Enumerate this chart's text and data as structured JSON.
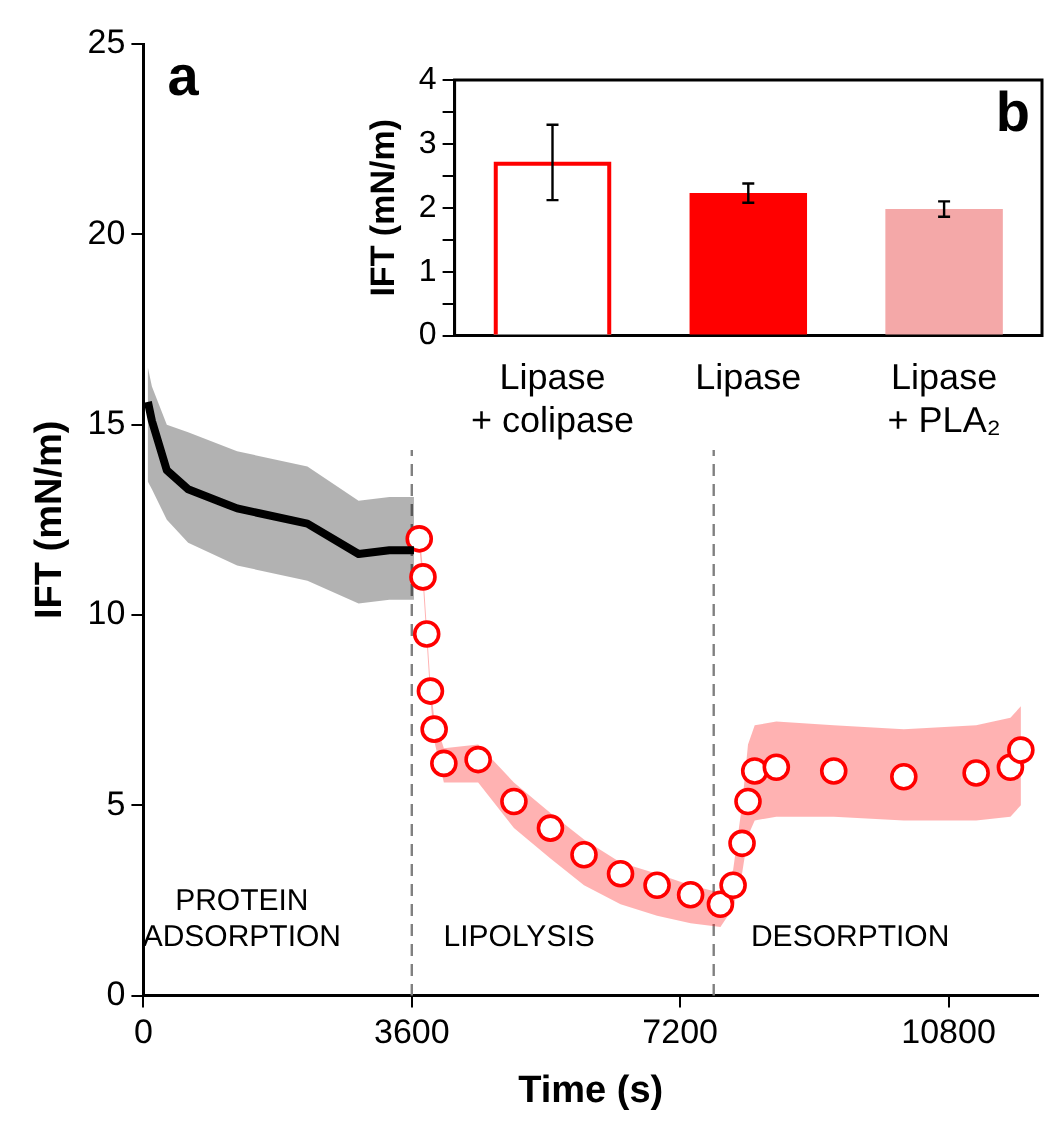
{
  "chart_data": [
    {
      "type": "line",
      "xlabel": "Time (s)",
      "ylabel": "IFT (mN/m)",
      "xlim": [
        0,
        12000
      ],
      "xticks": [
        0,
        3600,
        7200,
        10800
      ],
      "ylim": [
        0,
        25
      ],
      "yticks": [
        0,
        5,
        10,
        15,
        20,
        25
      ],
      "grid": false,
      "legend": false,
      "series": [
        {
          "type": "line",
          "color": "#000000",
          "marker": "none",
          "x": [
            60,
            114,
            314,
            600,
            1257,
            2200,
            2886,
            3300,
            3629
          ],
          "values": [
            15.6,
            15.1,
            13.8,
            13.3,
            12.8,
            12.4,
            11.6,
            11.7,
            11.7
          ],
          "lower": [
            13.5,
            13.3,
            12.5,
            11.9,
            11.3,
            10.9,
            10.3,
            10.4,
            10.4
          ],
          "upper": [
            16.5,
            16.0,
            15.0,
            14.8,
            14.3,
            13.9,
            13.0,
            13.1,
            13.1
          ]
        },
        {
          "type": "scatter",
          "color": "#ff0000",
          "marker": "circle",
          "x": [
            3700,
            3750,
            3800,
            3850,
            3900,
            4030,
            4490,
            4970,
            5460,
            5910,
            6400,
            6890,
            7340,
            7740,
            7910,
            8030,
            8110,
            8200,
            8490,
            9260,
            10200,
            11170,
            11630,
            11770
          ],
          "values": [
            12.0,
            11.0,
            9.5,
            8.0,
            7.0,
            6.1,
            6.2,
            5.1,
            4.4,
            3.7,
            3.2,
            2.9,
            2.65,
            2.4,
            2.9,
            4.0,
            5.1,
            5.9,
            6.0,
            5.9,
            5.75,
            5.85,
            6.0,
            6.45
          ],
          "lower": [
            11.8,
            10.8,
            9.3,
            7.8,
            6.7,
            5.6,
            5.6,
            4.4,
            3.6,
            2.9,
            2.4,
            2.1,
            1.9,
            1.8,
            2.3,
            3.2,
            4.2,
            4.6,
            4.7,
            4.7,
            4.6,
            4.6,
            4.7,
            5.0
          ],
          "upper": [
            12.2,
            11.2,
            9.7,
            8.2,
            7.3,
            6.5,
            6.6,
            5.6,
            4.8,
            4.1,
            3.5,
            3.2,
            2.9,
            2.7,
            3.3,
            5.0,
            6.6,
            7.1,
            7.2,
            7.1,
            7.0,
            7.1,
            7.3,
            7.6
          ]
        }
      ],
      "ref_lines": [
        {
          "axis": "x",
          "value": 3600,
          "color": "#808080",
          "line_style": "dashed"
        },
        {
          "axis": "x",
          "value": 7650,
          "color": "#808080",
          "line_style": "dashed"
        }
      ],
      "annotations": [
        "a",
        "PROTEIN ADSORPTION",
        "LIPOLYSIS",
        "DESORPTION"
      ]
    },
    {
      "type": "bar",
      "ylabel": "IFT (mN/m)",
      "categories": [
        "Lipase + colipase",
        "Lipase",
        "Lipase + PLA₂"
      ],
      "values": [
        2.72,
        2.23,
        1.98
      ],
      "colors": [
        "#ffffff",
        "#ff0000",
        "#f4a8a8"
      ],
      "errors": [
        [
          2.12,
          3.3
        ],
        0.15,
        0.12
      ],
      "ylim": [
        0,
        4
      ],
      "yticks": [
        0,
        {
          "value": 0.5,
          "label": null
        },
        1,
        {
          "value": 1.5,
          "label": null
        },
        2,
        {
          "value": 2.5,
          "label": null
        },
        3,
        {
          "value": 3.5,
          "label": null
        },
        4
      ],
      "grid": false,
      "legend": false,
      "annotations": [
        "b"
      ]
    }
  ]
}
